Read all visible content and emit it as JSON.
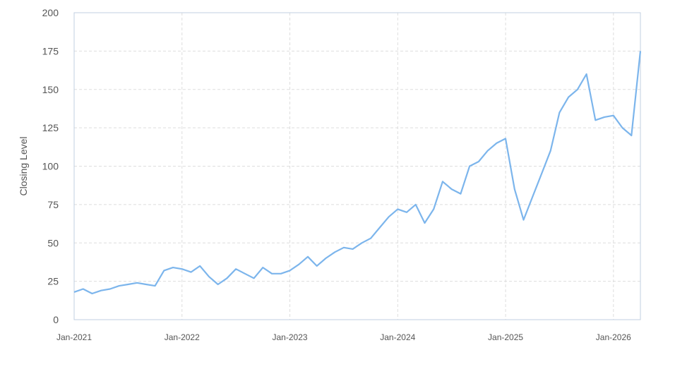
{
  "chart_data": {
    "type": "line",
    "title": "",
    "xlabel": "",
    "ylabel": "Closing Level",
    "ylim": [
      0,
      200
    ],
    "xlim": [
      "2021-01",
      "2026-04"
    ],
    "grid": true,
    "legend": "none",
    "y_ticks": [
      "0",
      "25",
      "50",
      "75",
      "100",
      "125",
      "150",
      "175",
      "200"
    ],
    "x_ticks": [
      {
        "label": "Jan-2021",
        "date": "2021-01"
      },
      {
        "label": "Jan-2022",
        "date": "2022-01"
      },
      {
        "label": "Jan-2023",
        "date": "2023-01"
      },
      {
        "label": "Jan-2024",
        "date": "2024-01"
      },
      {
        "label": "Jan-2025",
        "date": "2025-01"
      },
      {
        "label": "Jan-2026",
        "date": "2026-01"
      }
    ],
    "colors": {
      "line": "#7cb5ec",
      "grid": "#dddddd",
      "frame": "#c0cfe0",
      "text": "#555555"
    },
    "series": [
      {
        "x": [
          "2021-01",
          "2021-02",
          "2021-03",
          "2021-04",
          "2021-05",
          "2021-06",
          "2021-07",
          "2021-08",
          "2021-09",
          "2021-10",
          "2021-11",
          "2021-12",
          "2022-01",
          "2022-02",
          "2022-03",
          "2022-04",
          "2022-05",
          "2022-06",
          "2022-07",
          "2022-08",
          "2022-09",
          "2022-10",
          "2022-11",
          "2022-12",
          "2023-01",
          "2023-02",
          "2023-03",
          "2023-04",
          "2023-05",
          "2023-06",
          "2023-07",
          "2023-08",
          "2023-09",
          "2023-10",
          "2023-11",
          "2023-12",
          "2024-01",
          "2024-02",
          "2024-03",
          "2024-04",
          "2024-05",
          "2024-06",
          "2024-07",
          "2024-08",
          "2024-09",
          "2024-10",
          "2024-11",
          "2024-12",
          "2025-01",
          "2025-02",
          "2025-03",
          "2025-04",
          "2025-05",
          "2025-06",
          "2025-07",
          "2025-08",
          "2025-09",
          "2025-10",
          "2025-11",
          "2025-12",
          "2026-01",
          "2026-02",
          "2026-03",
          "2026-04"
        ],
        "values": [
          18,
          20,
          17,
          19,
          20,
          22,
          23,
          24,
          23,
          22,
          32,
          34,
          33,
          31,
          35,
          28,
          23,
          27,
          33,
          30,
          27,
          34,
          30,
          30,
          32,
          36,
          41,
          35,
          40,
          44,
          47,
          46,
          50,
          53,
          60,
          67,
          72,
          70,
          75,
          63,
          72,
          90,
          85,
          82,
          100,
          103,
          110,
          115,
          118,
          85,
          65,
          80,
          95,
          110,
          135,
          145,
          150,
          160,
          130,
          132,
          133,
          125,
          120,
          175
        ]
      }
    ]
  }
}
